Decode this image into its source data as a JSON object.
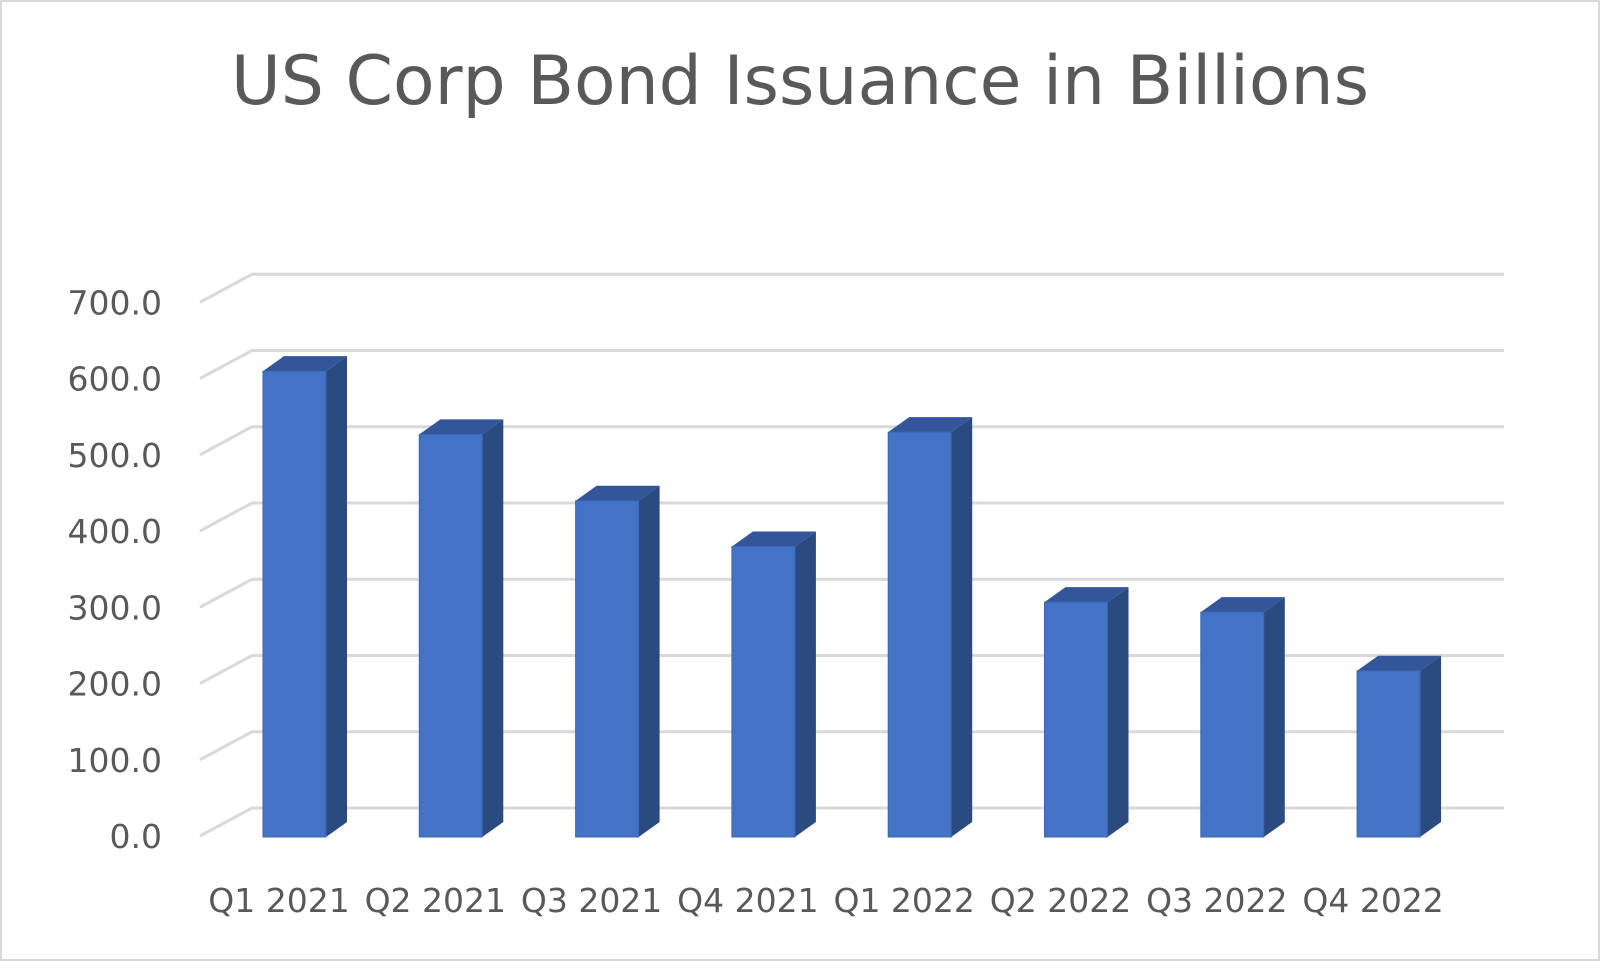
{
  "chart_data": {
    "type": "bar",
    "title": "US Corp Bond Issuance in Billions",
    "categories": [
      "Q1 2021",
      "Q2 2021",
      "Q3 2021",
      "Q4 2021",
      "Q1 2022",
      "Q2 2022",
      "Q3 2022",
      "Q4 2022"
    ],
    "values": [
      611,
      528,
      441,
      381,
      531,
      308,
      295,
      218
    ],
    "ylim": [
      0,
      700
    ],
    "yticks": [
      "0.0",
      "100.0",
      "200.0",
      "300.0",
      "400.0",
      "500.0",
      "600.0",
      "700.0"
    ],
    "grid": true,
    "legend": "none",
    "colors": {
      "bar_front": "#4472c4",
      "bar_side": "#2a4a80",
      "bar_top": "#33569a",
      "grid": "#d9d9d9",
      "text": "#595959"
    }
  }
}
